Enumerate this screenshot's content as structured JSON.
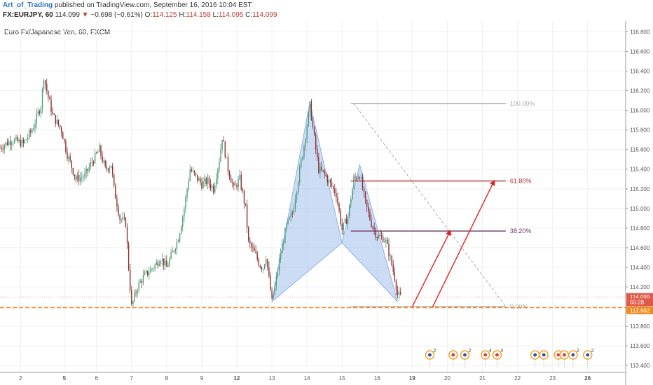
{
  "header": {
    "username": "Art_of_Trading",
    "published": "published on TradingView.com, September 16, 2016 10:04 EST",
    "symbol": "FX:EURJPY, 60",
    "last": "114.099",
    "change": "−0.698 (−0.61%)",
    "o_label": "O:",
    "o": "114.125",
    "h_label": "H:",
    "h": "114.158",
    "l_label": "L:",
    "l": "114.095",
    "c_label": "C:",
    "c": "114.099"
  },
  "colors": {
    "up": "#4c9c7a",
    "down": "#8a3030",
    "pattern": "#8fb2e8",
    "fib_high": "#aaaaaa",
    "fib_mid": "#b22b2b",
    "fib_382": "#6b3a66",
    "arrow": "#e02020",
    "support": "#f08a1e",
    "price_tag": "#e05a4a"
  },
  "chart_data": {
    "type": "candlestick",
    "title": "Euro Fx/Japanese Yen, 60, FXCM",
    "y_ticks": [
      "116.800",
      "116.600",
      "116.400",
      "116.200",
      "116.000",
      "115.800",
      "115.600",
      "115.400",
      "115.200",
      "115.000",
      "114.800",
      "114.600",
      "114.400",
      "114.200",
      "114.000",
      "113.800",
      "113.600",
      "113.400"
    ],
    "y_tick_values": [
      116.8,
      116.6,
      116.4,
      116.2,
      116.0,
      115.8,
      115.6,
      115.4,
      115.2,
      115.0,
      114.8,
      114.6,
      114.4,
      114.2,
      114.0,
      113.8,
      113.6,
      113.4
    ],
    "ylim": [
      113.33,
      116.91
    ],
    "x_ticks": [
      {
        "label": "2",
        "t": 7
      },
      {
        "label": "5",
        "t": 22
      },
      {
        "label": "6",
        "t": 33
      },
      {
        "label": "7",
        "t": 45
      },
      {
        "label": "8",
        "t": 57
      },
      {
        "label": "9",
        "t": 69
      },
      {
        "label": "12",
        "t": 81
      },
      {
        "label": "13",
        "t": 93
      },
      {
        "label": "14",
        "t": 105
      },
      {
        "label": "15",
        "t": 117
      },
      {
        "label": "16",
        "t": 129
      },
      {
        "label": "19",
        "t": 141
      },
      {
        "label": "20",
        "t": 153
      },
      {
        "label": "21",
        "t": 165
      },
      {
        "label": "22",
        "t": 177
      },
      {
        "label": "23",
        "t": 189
      },
      {
        "label": "26",
        "t": 201
      }
    ],
    "x_bold": [
      "5",
      "12",
      "19",
      "26"
    ],
    "xlim": [
      0,
      214
    ],
    "path_points": [
      [
        0,
        115.62
      ],
      [
        4,
        115.7
      ],
      [
        8,
        115.66
      ],
      [
        11,
        115.8
      ],
      [
        14,
        116.05
      ],
      [
        15,
        116.35
      ],
      [
        16,
        116.2
      ],
      [
        18,
        115.95
      ],
      [
        21,
        115.8
      ],
      [
        23,
        115.55
      ],
      [
        26,
        115.3
      ],
      [
        29,
        115.33
      ],
      [
        31,
        115.45
      ],
      [
        33,
        115.55
      ],
      [
        34,
        115.6
      ],
      [
        36,
        115.4
      ],
      [
        38,
        115.45
      ],
      [
        39,
        115.2
      ],
      [
        41,
        114.9
      ],
      [
        43,
        114.85
      ],
      [
        44,
        114.4
      ],
      [
        45,
        114.0
      ],
      [
        47,
        114.2
      ],
      [
        49,
        114.3
      ],
      [
        51,
        114.36
      ],
      [
        53,
        114.42
      ],
      [
        55,
        114.5
      ],
      [
        57,
        114.4
      ],
      [
        59,
        114.55
      ],
      [
        61,
        114.7
      ],
      [
        63,
        115.0
      ],
      [
        65,
        115.4
      ],
      [
        67,
        115.32
      ],
      [
        69,
        115.25
      ],
      [
        71,
        115.28
      ],
      [
        73,
        115.2
      ],
      [
        75,
        115.5
      ],
      [
        76,
        115.73
      ],
      [
        78,
        115.4
      ],
      [
        80,
        115.2
      ],
      [
        82,
        115.3
      ],
      [
        84,
        115.0
      ],
      [
        85,
        114.65
      ],
      [
        87,
        114.55
      ],
      [
        89,
        114.42
      ],
      [
        90,
        114.4
      ],
      [
        91,
        114.52
      ],
      [
        93,
        114.05
      ],
      [
        94,
        114.2
      ],
      [
        96,
        114.55
      ],
      [
        98,
        114.82
      ],
      [
        100,
        114.95
      ],
      [
        102,
        115.3
      ],
      [
        104,
        115.65
      ],
      [
        106,
        116.05
      ],
      [
        108,
        115.6
      ],
      [
        109,
        115.4
      ],
      [
        111,
        115.35
      ],
      [
        113,
        115.25
      ],
      [
        115,
        115.15
      ],
      [
        117,
        114.78
      ],
      [
        119,
        114.92
      ],
      [
        121,
        115.3
      ],
      [
        123,
        115.35
      ],
      [
        125,
        115.05
      ],
      [
        127,
        114.85
      ],
      [
        129,
        114.72
      ],
      [
        131,
        114.7
      ],
      [
        132,
        114.66
      ],
      [
        133,
        114.55
      ],
      [
        135,
        114.3
      ],
      [
        136,
        114.12
      ],
      [
        137,
        114.1
      ]
    ],
    "pattern": {
      "outer": [
        [
          93,
          114.05
        ],
        [
          106,
          116.08
        ],
        [
          117,
          114.65
        ]
      ],
      "inner": [
        [
          117,
          114.65
        ],
        [
          123,
          115.45
        ],
        [
          136,
          114.05
        ]
      ]
    },
    "fib_levels": [
      {
        "label": "100.00%",
        "price": 116.07,
        "x0": 120,
        "x1": 173
      },
      {
        "label": "61.80%",
        "price": 115.28,
        "x0": 120,
        "x1": 173
      },
      {
        "label": "38.20%",
        "price": 114.77,
        "x0": 120,
        "x1": 173
      },
      {
        "label": "0.00%",
        "price": 114.0,
        "x0": 120,
        "x1": 173
      }
    ],
    "fib_diagonal": [
      [
        121,
        116.07
      ],
      [
        173,
        114.0
      ]
    ],
    "arrows": [
      {
        "from": [
          141,
          114.0
        ],
        "to": [
          154,
          114.77
        ]
      },
      {
        "from": [
          148,
          114.0
        ],
        "to": [
          169,
          115.28
        ]
      }
    ],
    "support_price": 113.99,
    "current_price": 114.099,
    "price_tags": [
      {
        "label": "114.099",
        "price": 114.099
      },
      {
        "label": "55:28",
        "price": 114.045
      },
      {
        "label": "113.962",
        "price": 113.962
      }
    ],
    "events": [
      {
        "t": 147,
        "count": "2",
        "kind": "blue"
      },
      {
        "t": 155,
        "count": "",
        "kind": "red"
      },
      {
        "t": 159,
        "count": "2",
        "kind": "blue"
      },
      {
        "t": 166,
        "count": "4",
        "kind": "red"
      },
      {
        "t": 170,
        "count": "4",
        "kind": "red"
      },
      {
        "t": 183,
        "count": "",
        "kind": "blue"
      },
      {
        "t": 186,
        "count": "",
        "kind": "blue"
      },
      {
        "t": 191,
        "count": "",
        "kind": "red"
      },
      {
        "t": 193,
        "count": "",
        "kind": "red"
      },
      {
        "t": 196,
        "count": "2",
        "kind": "blue"
      },
      {
        "t": 201,
        "count": "2",
        "kind": "blue"
      }
    ]
  }
}
